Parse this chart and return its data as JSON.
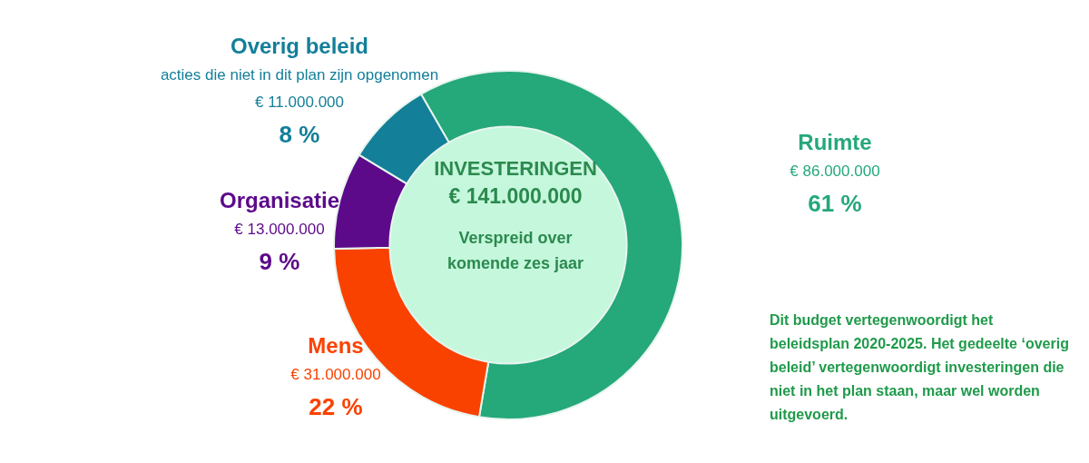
{
  "chart_data": {
    "type": "donut",
    "title": "INVESTERINGEN",
    "subtitle": "€ 141.000.000",
    "categories": [
      "Ruimte",
      "Mens",
      "Organisatie",
      "Overig beleid"
    ],
    "values": [
      61,
      22,
      9,
      8
    ],
    "value_labels": [
      "61 %",
      "22 %",
      "9 %",
      "8 %"
    ],
    "colors": [
      "#25a87a",
      "#fa4200",
      "#5c0a8a",
      "#137f99"
    ],
    "annotations": [
      {
        "text": "€ 86.000.000",
        "x": "Ruimte"
      },
      {
        "text": "€ 31.000.000",
        "x": "Mens"
      },
      {
        "text": "€ 13.000.000",
        "x": "Organisatie"
      },
      {
        "text": "acties die niet in dit plan zijn opgenomen",
        "x": "Overig beleid"
      },
      {
        "text": "€ 11.000.000",
        "x": "Overig beleid"
      },
      "Verspreid over komende zes jaar",
      "Dit budget vertegenwoordigt het beleidsplan 2020-2025. Het gedeelte ‘overig beleid’ vertegenwoordigt investeringen die niet in het plan staan, maar wel worden uitgevoerd."
    ],
    "legend": false
  }
}
